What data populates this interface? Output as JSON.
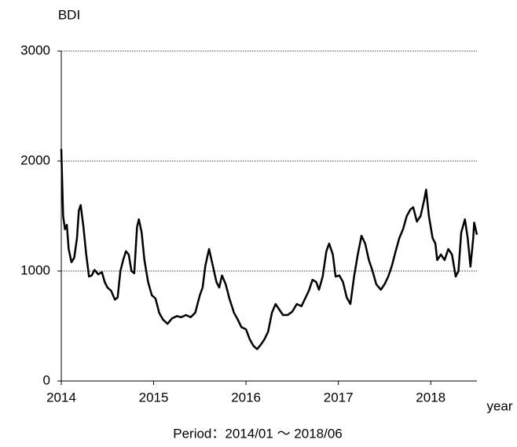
{
  "chart_data": {
    "type": "line",
    "y_label": "BDI",
    "x_label": "year",
    "footer": "Period：2014/01 ～ 2018/06",
    "xlim": [
      2014,
      2018.5
    ],
    "xticks": [
      2014,
      2015,
      2016,
      2017,
      2018
    ],
    "ylim": [
      0,
      3000
    ],
    "yticks": [
      0,
      1000,
      2000,
      3000
    ],
    "grid": true,
    "color": "#000000",
    "x": [
      2014.0,
      2014.02,
      2014.04,
      2014.06,
      2014.08,
      2014.11,
      2014.14,
      2014.17,
      2014.19,
      2014.21,
      2014.24,
      2014.27,
      2014.3,
      2014.33,
      2014.36,
      2014.4,
      2014.44,
      2014.47,
      2014.5,
      2014.54,
      2014.58,
      2014.61,
      2014.64,
      2014.67,
      2014.7,
      2014.73,
      2014.76,
      2014.79,
      2014.82,
      2014.84,
      2014.87,
      2014.9,
      2014.94,
      2014.98,
      2015.02,
      2015.06,
      2015.1,
      2015.15,
      2015.2,
      2015.25,
      2015.3,
      2015.35,
      2015.4,
      2015.45,
      2015.5,
      2015.53,
      2015.56,
      2015.6,
      2015.64,
      2015.68,
      2015.71,
      2015.74,
      2015.78,
      2015.82,
      2015.87,
      2015.91,
      2015.95,
      2016.0,
      2016.04,
      2016.08,
      2016.12,
      2016.16,
      2016.2,
      2016.24,
      2016.28,
      2016.32,
      2016.36,
      2016.4,
      2016.45,
      2016.5,
      2016.55,
      2016.6,
      2016.64,
      2016.68,
      2016.72,
      2016.76,
      2016.79,
      2016.83,
      2016.87,
      2016.9,
      2016.94,
      2016.97,
      2017.01,
      2017.05,
      2017.09,
      2017.13,
      2017.17,
      2017.21,
      2017.25,
      2017.29,
      2017.33,
      2017.37,
      2017.41,
      2017.46,
      2017.5,
      2017.54,
      2017.58,
      2017.62,
      2017.66,
      2017.7,
      2017.74,
      2017.78,
      2017.81,
      2017.85,
      2017.89,
      2017.93,
      2017.95,
      2017.98,
      2018.02,
      2018.05,
      2018.07,
      2018.11,
      2018.15,
      2018.19,
      2018.23,
      2018.27,
      2018.3,
      2018.33,
      2018.37,
      2018.4,
      2018.43,
      2018.46,
      2018.47,
      2018.5
    ],
    "values": [
      2110,
      1500,
      1380,
      1420,
      1200,
      1080,
      1120,
      1300,
      1550,
      1600,
      1400,
      1150,
      950,
      960,
      1010,
      970,
      990,
      900,
      850,
      820,
      740,
      760,
      1000,
      1100,
      1180,
      1150,
      1000,
      980,
      1400,
      1470,
      1350,
      1100,
      900,
      780,
      750,
      620,
      560,
      520,
      570,
      590,
      580,
      600,
      580,
      620,
      780,
      850,
      1050,
      1200,
      1050,
      900,
      850,
      960,
      880,
      750,
      620,
      560,
      490,
      470,
      380,
      320,
      290,
      330,
      380,
      450,
      620,
      700,
      650,
      600,
      600,
      630,
      700,
      680,
      750,
      820,
      920,
      900,
      830,
      950,
      1180,
      1250,
      1150,
      950,
      960,
      900,
      760,
      700,
      950,
      1150,
      1320,
      1250,
      1100,
      1000,
      880,
      830,
      880,
      950,
      1050,
      1180,
      1300,
      1380,
      1500,
      1560,
      1580,
      1450,
      1500,
      1650,
      1740,
      1500,
      1300,
      1250,
      1100,
      1150,
      1100,
      1200,
      1150,
      950,
      1000,
      1350,
      1470,
      1300,
      1040,
      1300,
      1440,
      1330
    ]
  }
}
